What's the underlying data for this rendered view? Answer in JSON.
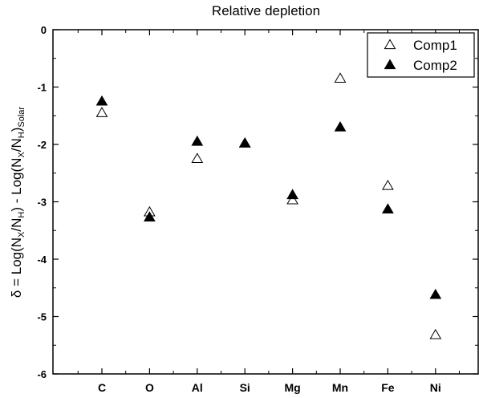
{
  "chart_data": {
    "type": "scatter",
    "title": "Relative depletion",
    "ylabel_parts": {
      "prefix": "δ = Log(N",
      "sub1": "X",
      "mid1": "/N",
      "sub2": "H",
      "mid2": ") - Log(N",
      "sub3": "X",
      "mid3": "/N",
      "sub4": "H",
      "mid4": ")",
      "sub5": "Solar"
    },
    "categories": [
      "C",
      "O",
      "Al",
      "Si",
      "Mg",
      "Mn",
      "Fe",
      "Ni"
    ],
    "ylim": [
      -6,
      0
    ],
    "yticks": [
      "0",
      "-1",
      "-2",
      "-3",
      "-4",
      "-5",
      "-6"
    ],
    "legend_position": "top-right",
    "series": [
      {
        "name": "Comp1",
        "marker": "open-triangle",
        "values": [
          -1.45,
          -3.18,
          -2.25,
          -1.98,
          -2.97,
          -0.85,
          -2.72,
          -5.32
        ]
      },
      {
        "name": "Comp2",
        "marker": "filled-triangle",
        "values": [
          -1.25,
          -3.27,
          -1.95,
          -1.98,
          -2.88,
          -1.7,
          -3.13,
          -4.62
        ]
      }
    ]
  }
}
